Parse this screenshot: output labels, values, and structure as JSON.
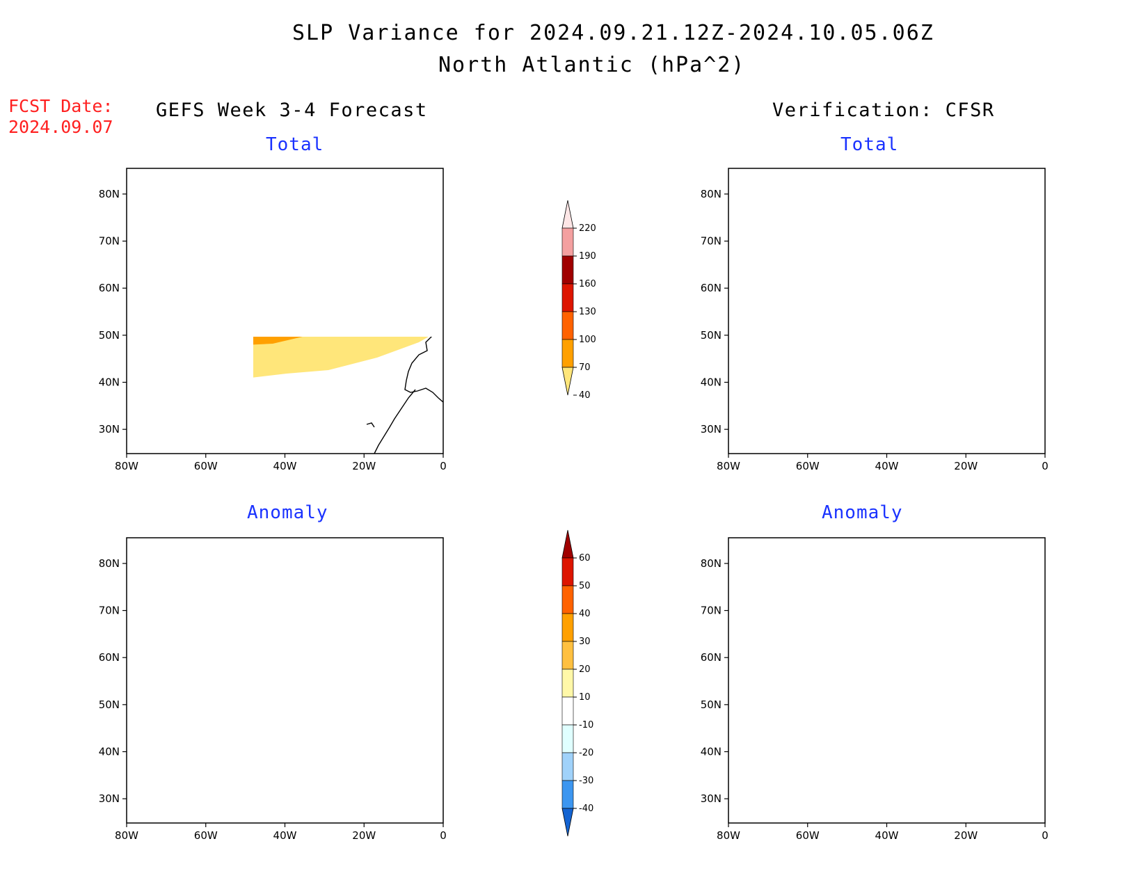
{
  "header": {
    "title_line1": "SLP Variance for 2024.09.21.12Z-2024.10.05.06Z",
    "title_line2": "North Atlantic (hPa^2)"
  },
  "forecast_date": {
    "label": "FCST Date:",
    "value": "2024.09.07"
  },
  "columns": {
    "left": "GEFS Week 3-4 Forecast",
    "right": "Verification: CFSR"
  },
  "panels": {
    "top_left": "Total",
    "top_right": "Total",
    "bottom_left": "Anomaly",
    "bottom_right": "Anomaly"
  },
  "axes": {
    "lon_ticks": [
      "80W",
      "60W",
      "40W",
      "20W",
      "0"
    ],
    "lat_ticks": [
      "80N",
      "70N",
      "60N",
      "50N",
      "40N",
      "30N"
    ]
  },
  "colorbar_total": {
    "levels": [
      "220",
      "190",
      "160",
      "130",
      "100",
      "70",
      "40"
    ],
    "colors": [
      "#fde6e6",
      "#f4a0a0",
      "#a00000",
      "#dd1500",
      "#ff6200",
      "#ffa000",
      "#ffe67a"
    ]
  },
  "colorbar_anomaly": {
    "levels": [
      "60",
      "50",
      "40",
      "30",
      "20",
      "10",
      "-10",
      "-20",
      "-30",
      "-40"
    ],
    "colors": [
      "#a00000",
      "#dd1500",
      "#ff6200",
      "#ffa000",
      "#ffc040",
      "#fff8a8",
      "#ffffff",
      "#e0ffff",
      "#a0d2fa",
      "#3c96f0",
      "#1464d2"
    ]
  },
  "legend_colors": {
    "total_40_70": "#ffe67a",
    "total_70_100": "#ffa000",
    "total_100_130": "#ff6200",
    "total_130_160": "#dd1500",
    "total_160_190": "#a00000",
    "anom_neg10_neg20": "#e0ffff",
    "anom_neg20_neg30": "#a0d2fa",
    "anom_neg30_neg40": "#3c96f0",
    "anom_below_neg40": "#1464d2"
  }
}
